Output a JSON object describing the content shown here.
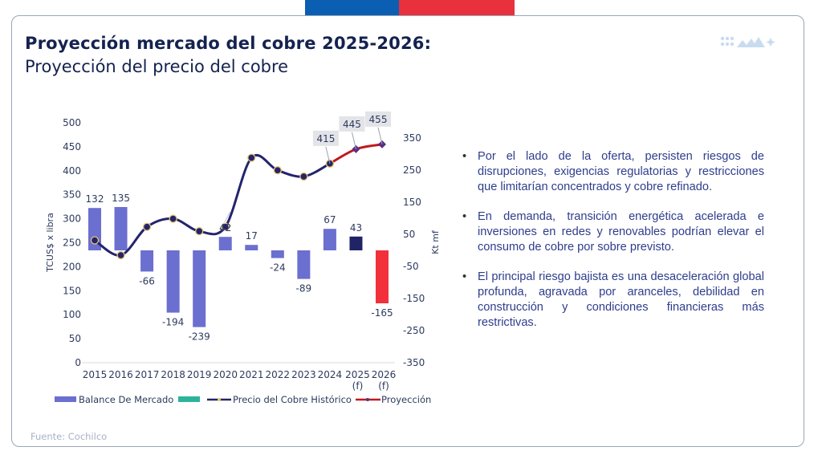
{
  "header": {
    "title": "Proyección mercado del cobre 2025-2026:",
    "subtitle": "Proyección del precio del cobre",
    "flag_colors": [
      "#0b5fb3",
      "#e8313c"
    ],
    "logo_icon": "dots-mountains-star-logo-icon"
  },
  "bullets": [
    "Por el lado de la oferta, persisten riesgos de disrupciones, exigencias regulatorias y restricciones que limitarían concentrados y cobre refinado.",
    "En demanda, transición energética acelerada e inversiones en redes y renovables podrían elevar el consumo de cobre por sobre previsto.",
    "El principal riesgo bajista es una desaceleración global profunda, agravada por aranceles, debilidad en construcción y condiciones financieras más restrictivas."
  ],
  "footer": {
    "source": "Fuente: Cochilco"
  },
  "chart_data": {
    "type": "bar",
    "title": "",
    "categories": [
      "2015",
      "2016",
      "2017",
      "2018",
      "2019",
      "2020",
      "2021",
      "2022",
      "2023",
      "2024",
      "2025\n(f)",
      "2026\n(f)"
    ],
    "ylabel": "TCUS$ x libra",
    "ylabel_right": "Kt mf",
    "ylim": [
      0,
      500
    ],
    "yticks": [
      0,
      50,
      100,
      150,
      200,
      250,
      300,
      350,
      400,
      450,
      500
    ],
    "ylim_right": [
      -350,
      350
    ],
    "yticks_right": [
      -350,
      -250,
      -150,
      -50,
      50,
      150,
      250,
      350
    ],
    "grid": false,
    "legend_position": "bottom",
    "series": [
      {
        "name": "Balance De Mercado",
        "type": "bar",
        "axis": "right",
        "color": "#6b6fcf",
        "values": [
          132,
          135,
          -66,
          -194,
          -239,
          42,
          17,
          -24,
          -89,
          67,
          43,
          -165
        ],
        "bar_colors": [
          "#6b6fcf",
          "#6b6fcf",
          "#6b6fcf",
          "#6b6fcf",
          "#6b6fcf",
          "#6b6fcf",
          "#6b6fcf",
          "#6b6fcf",
          "#6b6fcf",
          "#6b6fcf",
          "#1f2466",
          "#f2303c"
        ],
        "labels": [
          "132",
          "135",
          "-66",
          "-194",
          "-239",
          "42",
          "17",
          "-24",
          "-89",
          "67",
          "43",
          "-165"
        ]
      },
      {
        "name": "",
        "type": "bar",
        "axis": "right",
        "color": "#2db39b",
        "values": []
      },
      {
        "name": "Precio del Cobre Histórico",
        "type": "line",
        "axis": "left",
        "color": "#24246e",
        "marker_edge": "#e6c66a",
        "values": [
          255,
          224,
          283,
          300,
          274,
          283,
          427,
          401,
          388,
          415,
          null,
          null
        ]
      },
      {
        "name": "Proyección",
        "type": "line",
        "axis": "left",
        "color": "#c0191e",
        "values": [
          null,
          null,
          null,
          null,
          null,
          null,
          null,
          null,
          null,
          415,
          445,
          455
        ],
        "labels": {
          "9": "415",
          "10": "445",
          "11": "455"
        }
      }
    ]
  }
}
